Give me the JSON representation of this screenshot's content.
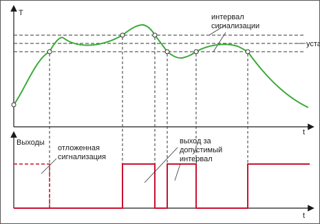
{
  "labels": {
    "t_axis": "T",
    "time_top": "t",
    "time_bottom": "t",
    "outputs": "Выходы",
    "interval_line1": "интервал",
    "interval_line2": "сигнализации",
    "setpoint": "уставка",
    "delayed_line1": "отложенная",
    "delayed_line2": "сигнализация",
    "out_of_range_line1": "выход за",
    "out_of_range_line2": "допустимый",
    "out_of_range_line3": "интервал"
  },
  "colors": {
    "curve": "#3aaa35",
    "output": "#c8102e",
    "axis": "#1a1a1a",
    "guide": "#333333",
    "frame": "#555555"
  }
}
